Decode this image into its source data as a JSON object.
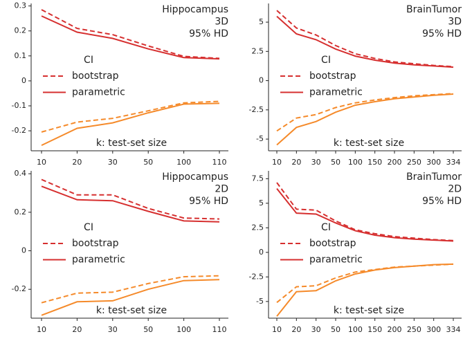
{
  "chart_data": [
    {
      "type": "line",
      "annotation": [
        "Hippocampus",
        "3D",
        "95% HD"
      ],
      "xlabel": "k: test-set size",
      "legend_title": "CI",
      "categories": [
        "10",
        "20",
        "30",
        "50",
        "100",
        "110"
      ],
      "ylim": [
        -0.28,
        0.31
      ],
      "yticks": [
        -0.2,
        -0.1,
        0.0,
        0.1,
        0.2,
        0.3
      ],
      "upper_color": "#d62f2f",
      "lower_color": "#f58a2a",
      "series": [
        {
          "name": "bootstrap",
          "style": "dashed",
          "upper": [
            0.285,
            0.21,
            0.185,
            0.14,
            0.098,
            0.09
          ],
          "lower": [
            -0.205,
            -0.165,
            -0.15,
            -0.12,
            -0.088,
            -0.082
          ]
        },
        {
          "name": "parametric",
          "style": "solid",
          "upper": [
            0.26,
            0.195,
            0.17,
            0.128,
            0.093,
            0.088
          ],
          "lower": [
            -0.258,
            -0.19,
            -0.168,
            -0.128,
            -0.093,
            -0.09
          ]
        }
      ]
    },
    {
      "type": "line",
      "annotation": [
        "BrainTumor",
        "3D",
        "95% HD"
      ],
      "xlabel": "k: test-set size",
      "legend_title": "CI",
      "categories": [
        "10",
        "20",
        "30",
        "50",
        "100",
        "150",
        "200",
        "250",
        "300",
        "334"
      ],
      "ylim": [
        -6.0,
        6.6
      ],
      "yticks": [
        -5.0,
        -2.5,
        0.0,
        2.5,
        5.0
      ],
      "upper_color": "#d62f2f",
      "lower_color": "#f58a2a",
      "series": [
        {
          "name": "bootstrap",
          "style": "dashed",
          "upper": [
            6.0,
            4.5,
            3.9,
            3.0,
            2.3,
            1.9,
            1.6,
            1.45,
            1.3,
            1.2
          ],
          "lower": [
            -4.3,
            -3.2,
            -2.9,
            -2.3,
            -1.9,
            -1.65,
            -1.45,
            -1.3,
            -1.2,
            -1.1
          ]
        },
        {
          "name": "parametric",
          "style": "solid",
          "upper": [
            5.5,
            4.0,
            3.5,
            2.7,
            2.1,
            1.75,
            1.5,
            1.35,
            1.25,
            1.15
          ],
          "lower": [
            -5.5,
            -4.0,
            -3.5,
            -2.7,
            -2.1,
            -1.8,
            -1.55,
            -1.4,
            -1.25,
            -1.15
          ]
        }
      ]
    },
    {
      "type": "line",
      "annotation": [
        "Hippocampus",
        "2D",
        "95% HD"
      ],
      "xlabel": "k: test-set size",
      "legend_title": "CI",
      "categories": [
        "10",
        "20",
        "30",
        "50",
        "100",
        "110"
      ],
      "ylim": [
        -0.35,
        0.415
      ],
      "yticks": [
        -0.2,
        0.0,
        0.2,
        0.4
      ],
      "upper_color": "#d62f2f",
      "lower_color": "#f58a2a",
      "series": [
        {
          "name": "bootstrap",
          "style": "dashed",
          "upper": [
            0.37,
            0.29,
            0.29,
            0.22,
            0.17,
            0.165
          ],
          "lower": [
            -0.27,
            -0.22,
            -0.215,
            -0.17,
            -0.135,
            -0.13
          ]
        },
        {
          "name": "parametric",
          "style": "solid",
          "upper": [
            0.335,
            0.265,
            0.26,
            0.205,
            0.155,
            0.15
          ],
          "lower": [
            -0.335,
            -0.265,
            -0.26,
            -0.2,
            -0.155,
            -0.15
          ]
        }
      ]
    },
    {
      "type": "line",
      "annotation": [
        "BrainTumor",
        "2D",
        "95% HD"
      ],
      "xlabel": "k: test-set size",
      "legend_title": "CI",
      "categories": [
        "10",
        "20",
        "30",
        "50",
        "100",
        "150",
        "200",
        "250",
        "300",
        "334"
      ],
      "ylim": [
        -6.7,
        8.3
      ],
      "yticks": [
        -5.0,
        -2.5,
        0.0,
        2.5,
        5.0,
        7.5
      ],
      "upper_color": "#d62f2f",
      "lower_color": "#f58a2a",
      "series": [
        {
          "name": "bootstrap",
          "style": "dashed",
          "upper": [
            7.1,
            4.4,
            4.3,
            3.2,
            2.3,
            1.9,
            1.6,
            1.45,
            1.3,
            1.2
          ],
          "lower": [
            -5.1,
            -3.5,
            -3.4,
            -2.6,
            -2.0,
            -1.75,
            -1.5,
            -1.4,
            -1.3,
            -1.2
          ]
        },
        {
          "name": "parametric",
          "style": "solid",
          "upper": [
            6.5,
            4.0,
            3.9,
            3.0,
            2.2,
            1.75,
            1.5,
            1.35,
            1.25,
            1.15
          ],
          "lower": [
            -6.5,
            -4.0,
            -3.9,
            -2.9,
            -2.2,
            -1.8,
            -1.55,
            -1.4,
            -1.25,
            -1.2
          ]
        }
      ]
    }
  ]
}
